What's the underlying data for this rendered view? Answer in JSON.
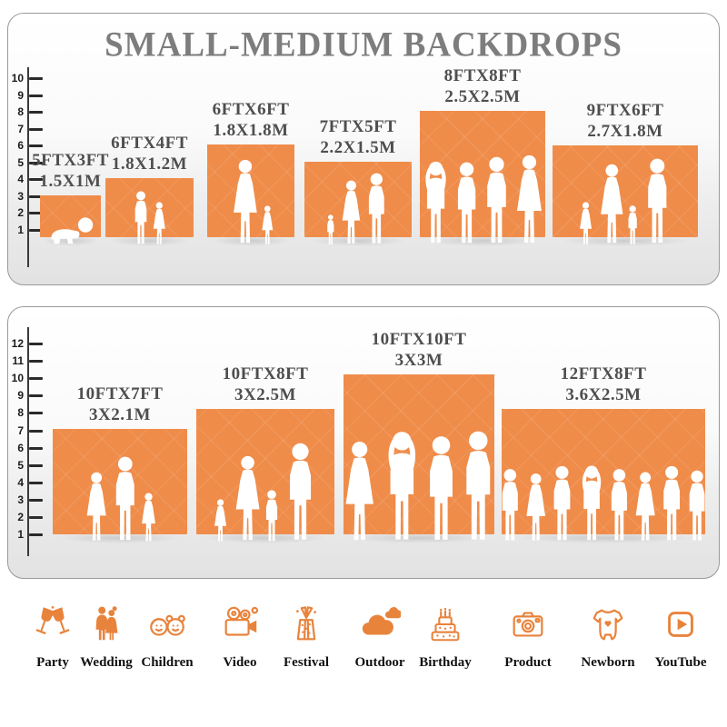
{
  "title": "SMALL-MEDIUM BACKDROPS",
  "colors": {
    "backdrop_orange": "#EF8C4A",
    "icon_orange": "#E8833C",
    "title_gray": "#7D7D7D",
    "label_gray": "#4E4E4E"
  },
  "panels": [
    {
      "ruler": [
        "10",
        "9",
        "8",
        "7",
        "6",
        "5",
        "4",
        "3",
        "2",
        "1"
      ],
      "backdrops": [
        {
          "size_ft": "5FTX3FT",
          "size_m": "1.5X1M",
          "people": [
            "crawling-baby"
          ]
        },
        {
          "size_ft": "6FTX4FT",
          "size_m": "1.8X1.2M",
          "people": [
            "boy",
            "girl"
          ]
        },
        {
          "size_ft": "6FTX6FT",
          "size_m": "1.8X1.8M",
          "people": [
            "mother-with-child",
            "girl"
          ]
        },
        {
          "size_ft": "7FTX5FT",
          "size_m": "2.2X1.5M",
          "people": [
            "toddler",
            "woman",
            "man"
          ]
        },
        {
          "size_ft": "8FTX8FT",
          "size_m": "2.5X2.5M",
          "people": [
            "man-arms-up",
            "man",
            "man",
            "woman"
          ]
        },
        {
          "size_ft": "9FTX6FT",
          "size_m": "2.7X1.8M",
          "people": [
            "girl",
            "woman",
            "child",
            "man"
          ]
        }
      ]
    },
    {
      "ruler": [
        "12",
        "11",
        "10",
        "9",
        "8",
        "7",
        "6",
        "5",
        "4",
        "3",
        "2",
        "1"
      ],
      "backdrops": [
        {
          "size_ft": "10FTX7FT",
          "size_m": "3X2.1M",
          "people": [
            "woman-with-child",
            "man",
            "girl"
          ]
        },
        {
          "size_ft": "10FTX8FT",
          "size_m": "3X2.5M",
          "people": [
            "girl",
            "woman",
            "boy",
            "man"
          ]
        },
        {
          "size_ft": "10FTX10FT",
          "size_m": "3X3M",
          "people": [
            "woman",
            "man-arms-up",
            "man",
            "man"
          ]
        },
        {
          "size_ft": "12FTX8FT",
          "size_m": "3.6X2.5M",
          "people": [
            "man",
            "woman",
            "man",
            "man-arms-up",
            "man",
            "woman",
            "man",
            "man"
          ]
        }
      ]
    }
  ],
  "categories": [
    {
      "label": "Party",
      "icon": "party-icon"
    },
    {
      "label": "Wedding",
      "icon": "wedding-icon"
    },
    {
      "label": "Children",
      "icon": "children-icon"
    },
    {
      "label": "Video",
      "icon": "video-icon"
    },
    {
      "label": "Festival",
      "icon": "festival-icon"
    },
    {
      "label": "Outdoor",
      "icon": "outdoor-icon"
    },
    {
      "label": "Birthday",
      "icon": "birthday-icon"
    },
    {
      "label": "Product",
      "icon": "product-icon"
    },
    {
      "label": "Newborn",
      "icon": "newborn-icon"
    },
    {
      "label": "YouTube",
      "icon": "youtube-icon"
    }
  ]
}
